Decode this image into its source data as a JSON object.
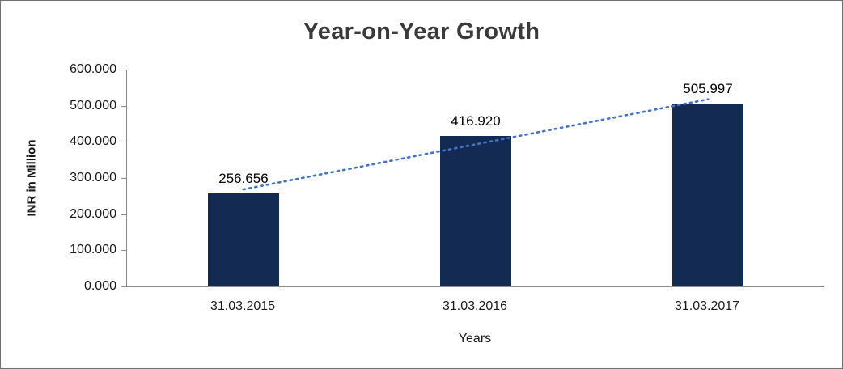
{
  "chart": {
    "title": "Year-on-Year Growth",
    "xlabel": "Years",
    "ylabel": "INR in Million"
  },
  "chart_data": {
    "type": "bar",
    "title": "Year-on-Year Growth",
    "xlabel": "Years",
    "ylabel": "INR in Million",
    "categories": [
      "31.03.2015",
      "31.03.2016",
      "31.03.2017"
    ],
    "values": [
      256.656,
      416.92,
      505.997
    ],
    "data_labels": [
      "256.656",
      "416.920",
      "505.997"
    ],
    "ylim": [
      0,
      600
    ],
    "ytick_step": 100,
    "ytick_labels_bottom_to_top": [
      "0.000",
      "100.000",
      "200.000",
      "300.000",
      "400.000",
      "500.000",
      "600.000"
    ],
    "grid": false,
    "legend": "none",
    "trendline": {
      "type": "linear",
      "style": "dotted"
    },
    "colors": {
      "bar": "#132A52",
      "trendline": "#4472C4",
      "axis": "#8c8c8c",
      "text": "#000000",
      "title": "#3a3a3a"
    }
  }
}
